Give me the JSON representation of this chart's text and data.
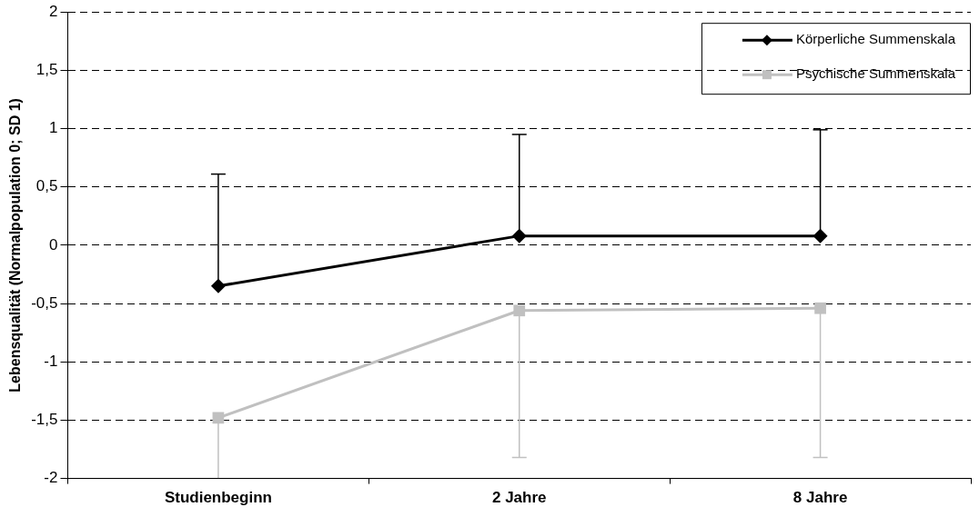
{
  "chart_data": {
    "type": "line",
    "ylabel": "Lebensqualität (Normalpopulation 0; SD 1)",
    "categories": [
      "Studienbeginn",
      "2 Jahre",
      "8 Jahre"
    ],
    "series": [
      {
        "name": "Körperliche Summenskala",
        "color": "#000000",
        "marker": "diamond",
        "values": [
          -0.35,
          0.08,
          0.08
        ],
        "errors": [
          [
            -0.35,
            0.61
          ],
          [
            0.08,
            0.95
          ],
          [
            0.08,
            0.99
          ]
        ]
      },
      {
        "name": "Psychische Summenskala",
        "color": "#c0c0c0",
        "marker": "square",
        "values": [
          -1.48,
          -0.56,
          -0.54
        ],
        "errors": [
          [
            -2,
            -1.48
          ],
          [
            -1.82,
            -0.56
          ],
          [
            -1.82,
            -0.54
          ]
        ]
      }
    ],
    "ylim": [
      -2,
      2
    ],
    "yticks": [
      -2,
      {
        "value": -1.5,
        "label": "-1,5"
      },
      -1,
      {
        "value": -0.5,
        "label": "-0,5"
      },
      0,
      {
        "value": 0.5,
        "label": "0,5"
      },
      1,
      {
        "value": 1.5,
        "label": "1,5"
      },
      2
    ],
    "grid": "y",
    "line_style": "solid",
    "legend": "top right"
  }
}
